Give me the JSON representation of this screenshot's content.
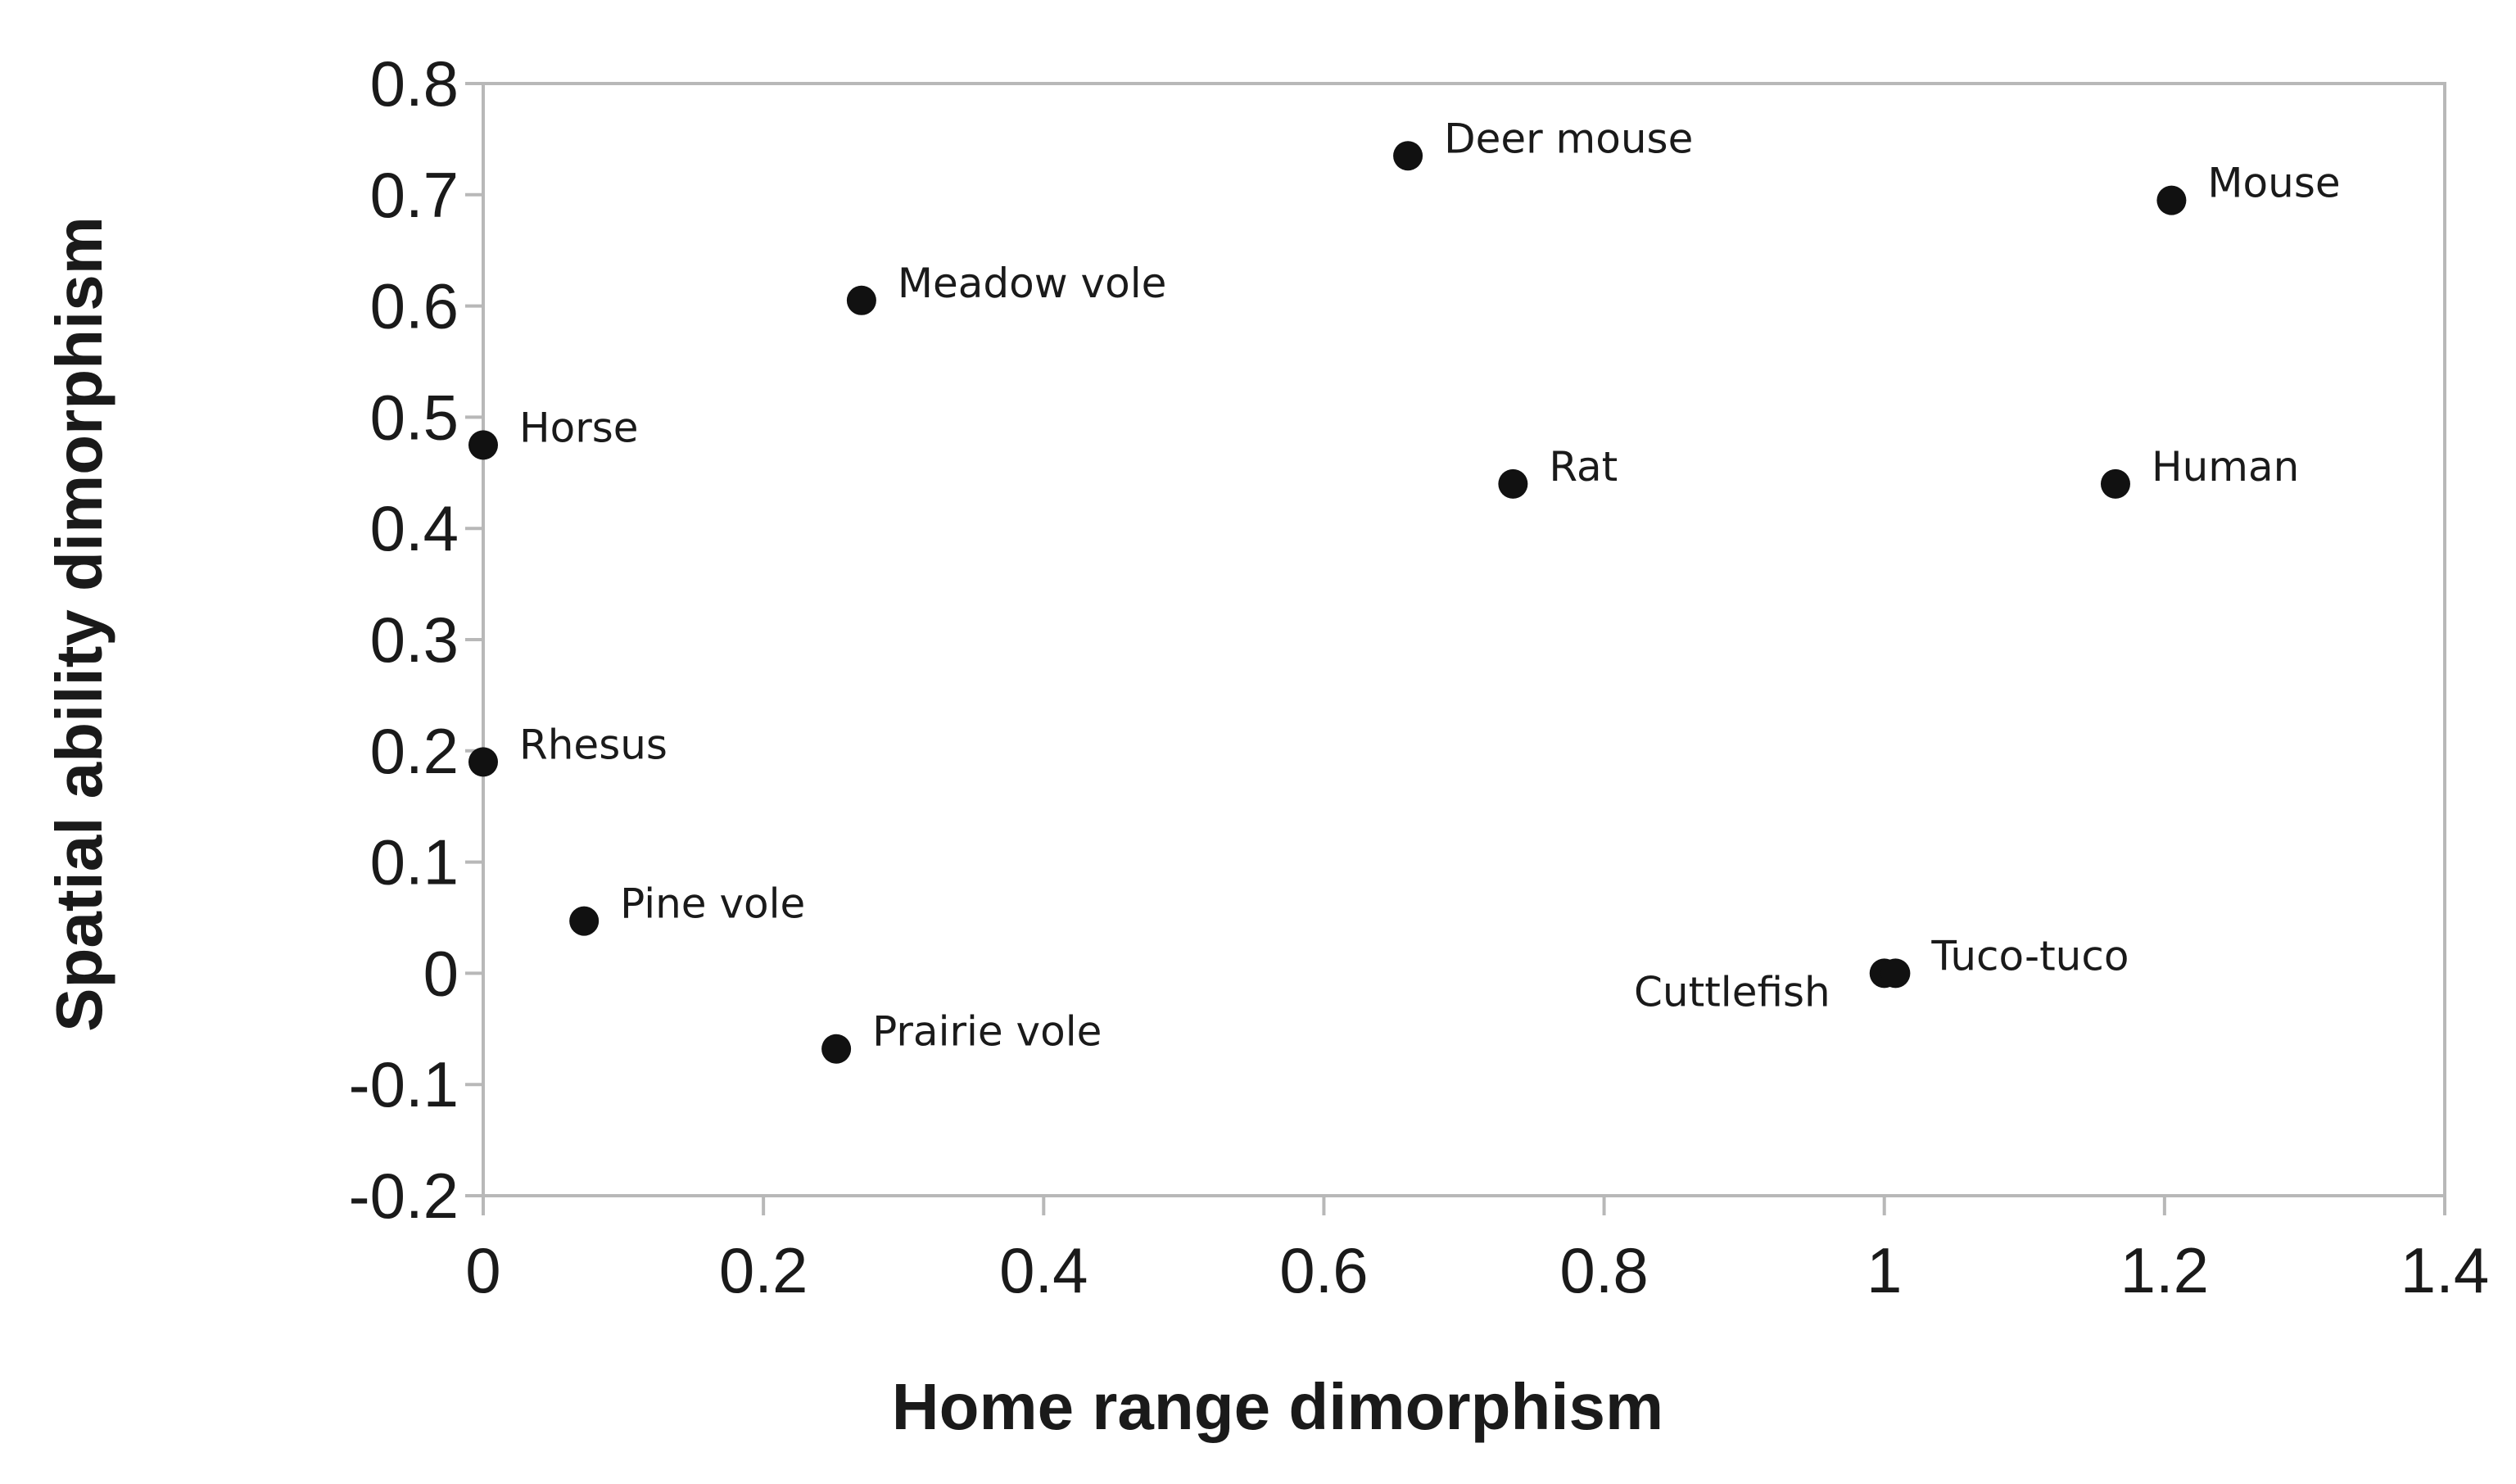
{
  "chart_data": {
    "type": "scatter",
    "xlabel": "Home range dimorphism",
    "ylabel": "Spatial ability dimorphism",
    "xlim": [
      0,
      1.4
    ],
    "ylim": [
      -0.2,
      0.8
    ],
    "x_ticks": [
      "0",
      "0.2",
      "0.4",
      "0.6",
      "0.8",
      "1",
      "1.2",
      "1.4"
    ],
    "y_ticks": [
      "0.8",
      "0.7",
      "0.6",
      "0.5",
      "0.4",
      "0.3",
      "0.2",
      "0.1",
      "0",
      "-0.1",
      "-0.2"
    ],
    "grid": false,
    "legend": "none",
    "marker_color": "#111111",
    "points": [
      {
        "label": "Deer mouse",
        "x": 0.66,
        "y": 0.735,
        "label_side": "right"
      },
      {
        "label": "Mouse",
        "x": 1.205,
        "y": 0.695,
        "label_side": "right"
      },
      {
        "label": "Meadow vole",
        "x": 0.27,
        "y": 0.605,
        "label_side": "right"
      },
      {
        "label": "Horse",
        "x": 0.0,
        "y": 0.475,
        "label_side": "right"
      },
      {
        "label": "Rat",
        "x": 0.735,
        "y": 0.44,
        "label_side": "right"
      },
      {
        "label": "Human",
        "x": 1.165,
        "y": 0.44,
        "label_side": "right"
      },
      {
        "label": "Rhesus",
        "x": 0.0,
        "y": 0.19,
        "label_side": "right"
      },
      {
        "label": "Pine vole",
        "x": 0.072,
        "y": 0.047,
        "label_side": "right"
      },
      {
        "label": "Cuttlefish",
        "x": 1.0,
        "y": 0.0,
        "label_side": "left-below"
      },
      {
        "label": "Tuco-tuco",
        "x": 1.008,
        "y": 0.0,
        "label_side": "right"
      },
      {
        "label": "Prairie vole",
        "x": 0.252,
        "y": -0.068,
        "label_side": "right"
      }
    ]
  }
}
